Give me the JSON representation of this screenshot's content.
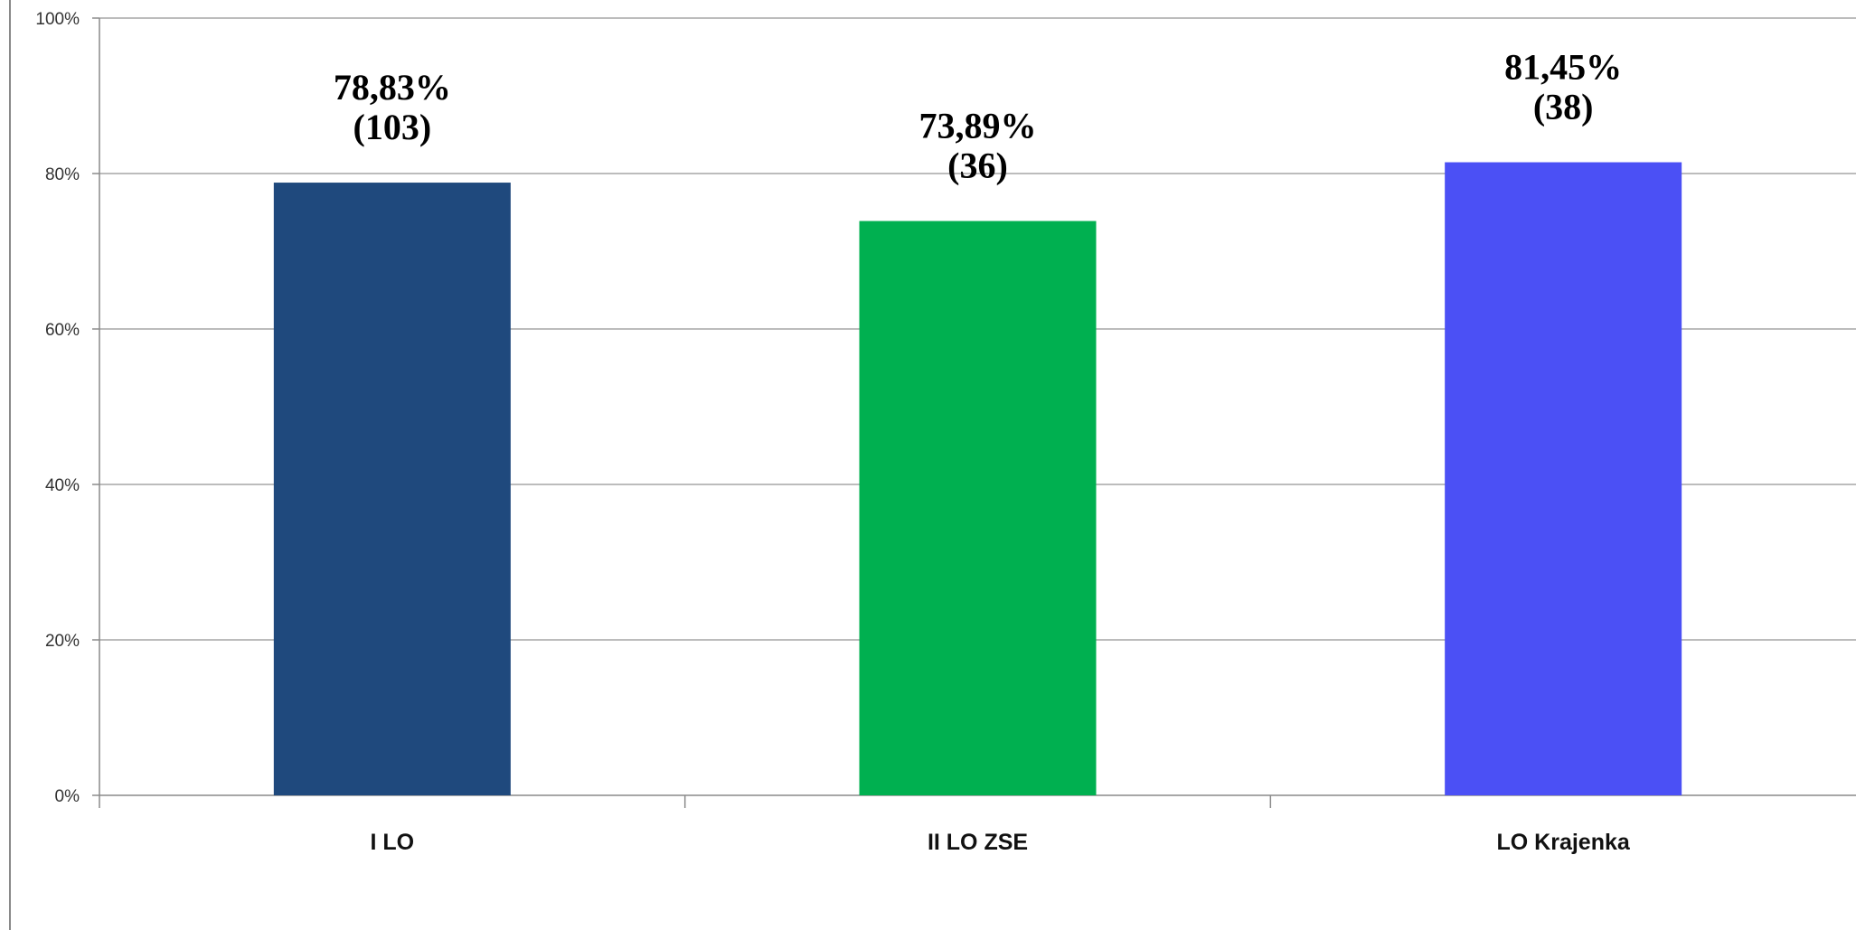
{
  "chart_data": {
    "type": "bar",
    "categories": [
      "I LO",
      "II LO ZSE",
      "LO Krajenka"
    ],
    "values": [
      78.83,
      73.89,
      81.45
    ],
    "data_labels": [
      {
        "percent": "78,83%",
        "count": "(103)"
      },
      {
        "percent": "73,89%",
        "count": "(36)"
      },
      {
        "percent": "81,45%",
        "count": "(38)"
      }
    ],
    "colors": [
      "#1f497d",
      "#00b050",
      "#4b50f5"
    ],
    "ylim": [
      0,
      100
    ],
    "yticks": [
      {
        "value": 0,
        "label": "0%"
      },
      {
        "value": 20,
        "label": "20%"
      },
      {
        "value": 40,
        "label": "40%"
      },
      {
        "value": 60,
        "label": "60%"
      },
      {
        "value": 80,
        "label": "80%"
      },
      {
        "value": 100,
        "label": "100%"
      }
    ],
    "grid": true,
    "title": "",
    "xlabel": "",
    "ylabel": ""
  }
}
